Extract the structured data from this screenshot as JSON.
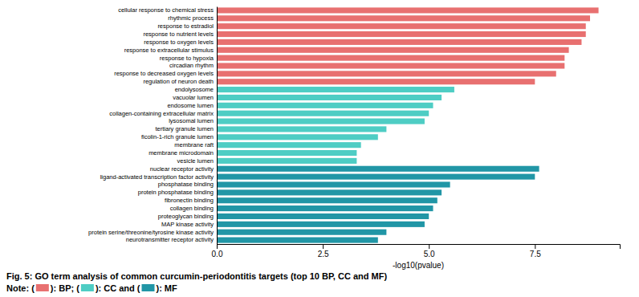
{
  "chart_data": {
    "type": "bar",
    "orientation": "horizontal",
    "title": "Fig. 5: GO term analysis of common curcumin-periodontitis targets (top 10 BP, CC and MF)",
    "categories": [
      "neurotransmitter receptor activity",
      "protein serine/threonine/tyrosine kinase activity",
      "MAP kinase activity",
      "proteoglycan binding",
      "collagen binding",
      "fibronectin binding",
      "protein phosphatase binding",
      "phosphatase binding",
      "ligand-activated transcription factor activity",
      "nuclear receptor activity",
      "vesicle lumen",
      "membrane microdomain",
      "membrane raft",
      "ficolin-1-rich granule lumen",
      "tertiary granule lumen",
      "lysosomal lumen",
      "collagen-containing extracellular matrix",
      "endosome lumen",
      "vacuolar lumen",
      "endolysosome",
      "regulation of neuron death",
      "response to decreased oxygen levels",
      "circadian rhythm",
      "response to hypoxia",
      "response to extracellular stimulus",
      "response to oxygen levels",
      "response to nutrient levels",
      "response to estradiol",
      "rhythmic process",
      "cellular response to chemical stress"
    ],
    "values": [
      3.8,
      4.0,
      4.9,
      5.0,
      5.1,
      5.2,
      5.3,
      5.5,
      7.5,
      7.6,
      3.3,
      3.3,
      3.4,
      3.8,
      4.0,
      4.9,
      5.0,
      5.1,
      5.3,
      5.6,
      7.5,
      8.0,
      8.2,
      8.2,
      8.3,
      8.6,
      8.7,
      8.7,
      8.8,
      9.0
    ],
    "colors": [
      "#2196A6",
      "#2196A6",
      "#2196A6",
      "#2196A6",
      "#2196A6",
      "#2196A6",
      "#2196A6",
      "#2196A6",
      "#2196A6",
      "#2196A6",
      "#4ECDC4",
      "#4ECDC4",
      "#4ECDC4",
      "#4ECDC4",
      "#4ECDC4",
      "#4ECDC4",
      "#4ECDC4",
      "#4ECDC4",
      "#4ECDC4",
      "#4ECDC4",
      "#E87070",
      "#E87070",
      "#E87070",
      "#E87070",
      "#E87070",
      "#E87070",
      "#E87070",
      "#E87070",
      "#E87070",
      "#E87070"
    ],
    "x_label": "-log10(pvalue)",
    "xlim": [
      0,
      9.5
    ],
    "xticks": [
      {
        "value": 0,
        "label": "0.0"
      },
      2.5,
      {
        "value": 5,
        "label": "5.0"
      },
      7.5
    ],
    "grid": false,
    "annotation": {
      "text": [
        "Note: (",
        "): BP; (",
        "): CC and (",
        "): MF"
      ],
      "colors": [
        "#E87070",
        "#4ECDC4",
        "#2196A6"
      ]
    }
  }
}
